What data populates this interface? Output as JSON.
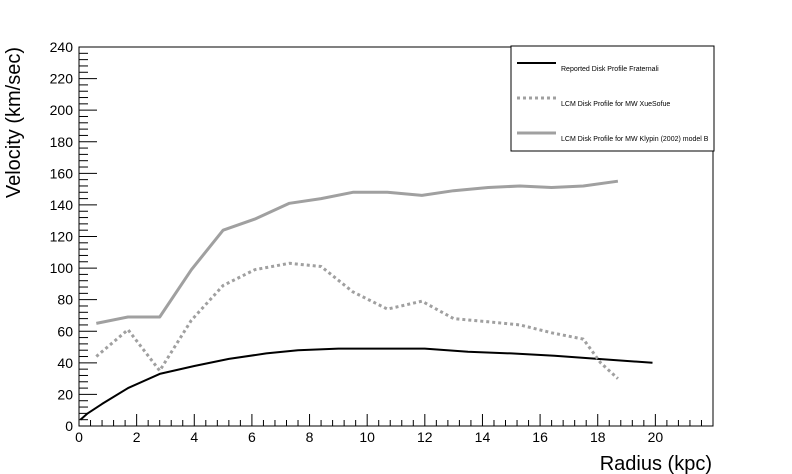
{
  "chart_data": {
    "type": "line",
    "xlabel": "Radius (kpc)",
    "ylabel": "Velocity (km/sec)",
    "xlim": [
      0,
      22
    ],
    "ylim": [
      0,
      240
    ],
    "x_ticks": [
      0,
      2,
      4,
      6,
      8,
      10,
      12,
      14,
      16,
      18,
      20
    ],
    "y_ticks": [
      0,
      20,
      40,
      60,
      80,
      100,
      120,
      140,
      160,
      180,
      200,
      220,
      240
    ],
    "grid": false,
    "legend_position": "top-right",
    "series": [
      {
        "name": "Reported Disk Profile Fraternali",
        "style": "solid",
        "color": "#000000",
        "x": [
          0.05,
          0.3,
          0.8,
          1.7,
          2.8,
          4.0,
          5.2,
          6.5,
          7.6,
          9.0,
          10.5,
          12.0,
          13.5,
          15.0,
          16.5,
          18.0,
          19.9
        ],
        "y": [
          4,
          8,
          14,
          24,
          33,
          38,
          42.5,
          46,
          48,
          49,
          49,
          49,
          47,
          46,
          44.5,
          42.5,
          40
        ]
      },
      {
        "name": "LCM Disk Profile for MW XueSofue",
        "style": "dashed",
        "color": "#a0a0a0",
        "x": [
          0.6,
          1.7,
          2.8,
          3.9,
          5.0,
          6.1,
          7.3,
          8.4,
          9.5,
          10.7,
          11.9,
          13.0,
          14.2,
          15.3,
          16.4,
          17.5,
          18.1,
          18.7
        ],
        "y": [
          44,
          61,
          35,
          67,
          89,
          99,
          103,
          101,
          85,
          74,
          79,
          68,
          66,
          64,
          59,
          55,
          40,
          30
        ]
      },
      {
        "name": "LCM Disk Profile for MW Klypin (2002) model B",
        "style": "solid",
        "color": "#a0a0a0",
        "x": [
          0.6,
          1.7,
          2.8,
          3.9,
          5.0,
          6.1,
          7.3,
          8.4,
          9.5,
          10.7,
          11.9,
          13.0,
          14.2,
          15.3,
          16.4,
          17.5,
          18.7
        ],
        "y": [
          65,
          69,
          69,
          99,
          124,
          131,
          141,
          144,
          148,
          148,
          146,
          149,
          151,
          152,
          151,
          152,
          155
        ]
      }
    ]
  }
}
